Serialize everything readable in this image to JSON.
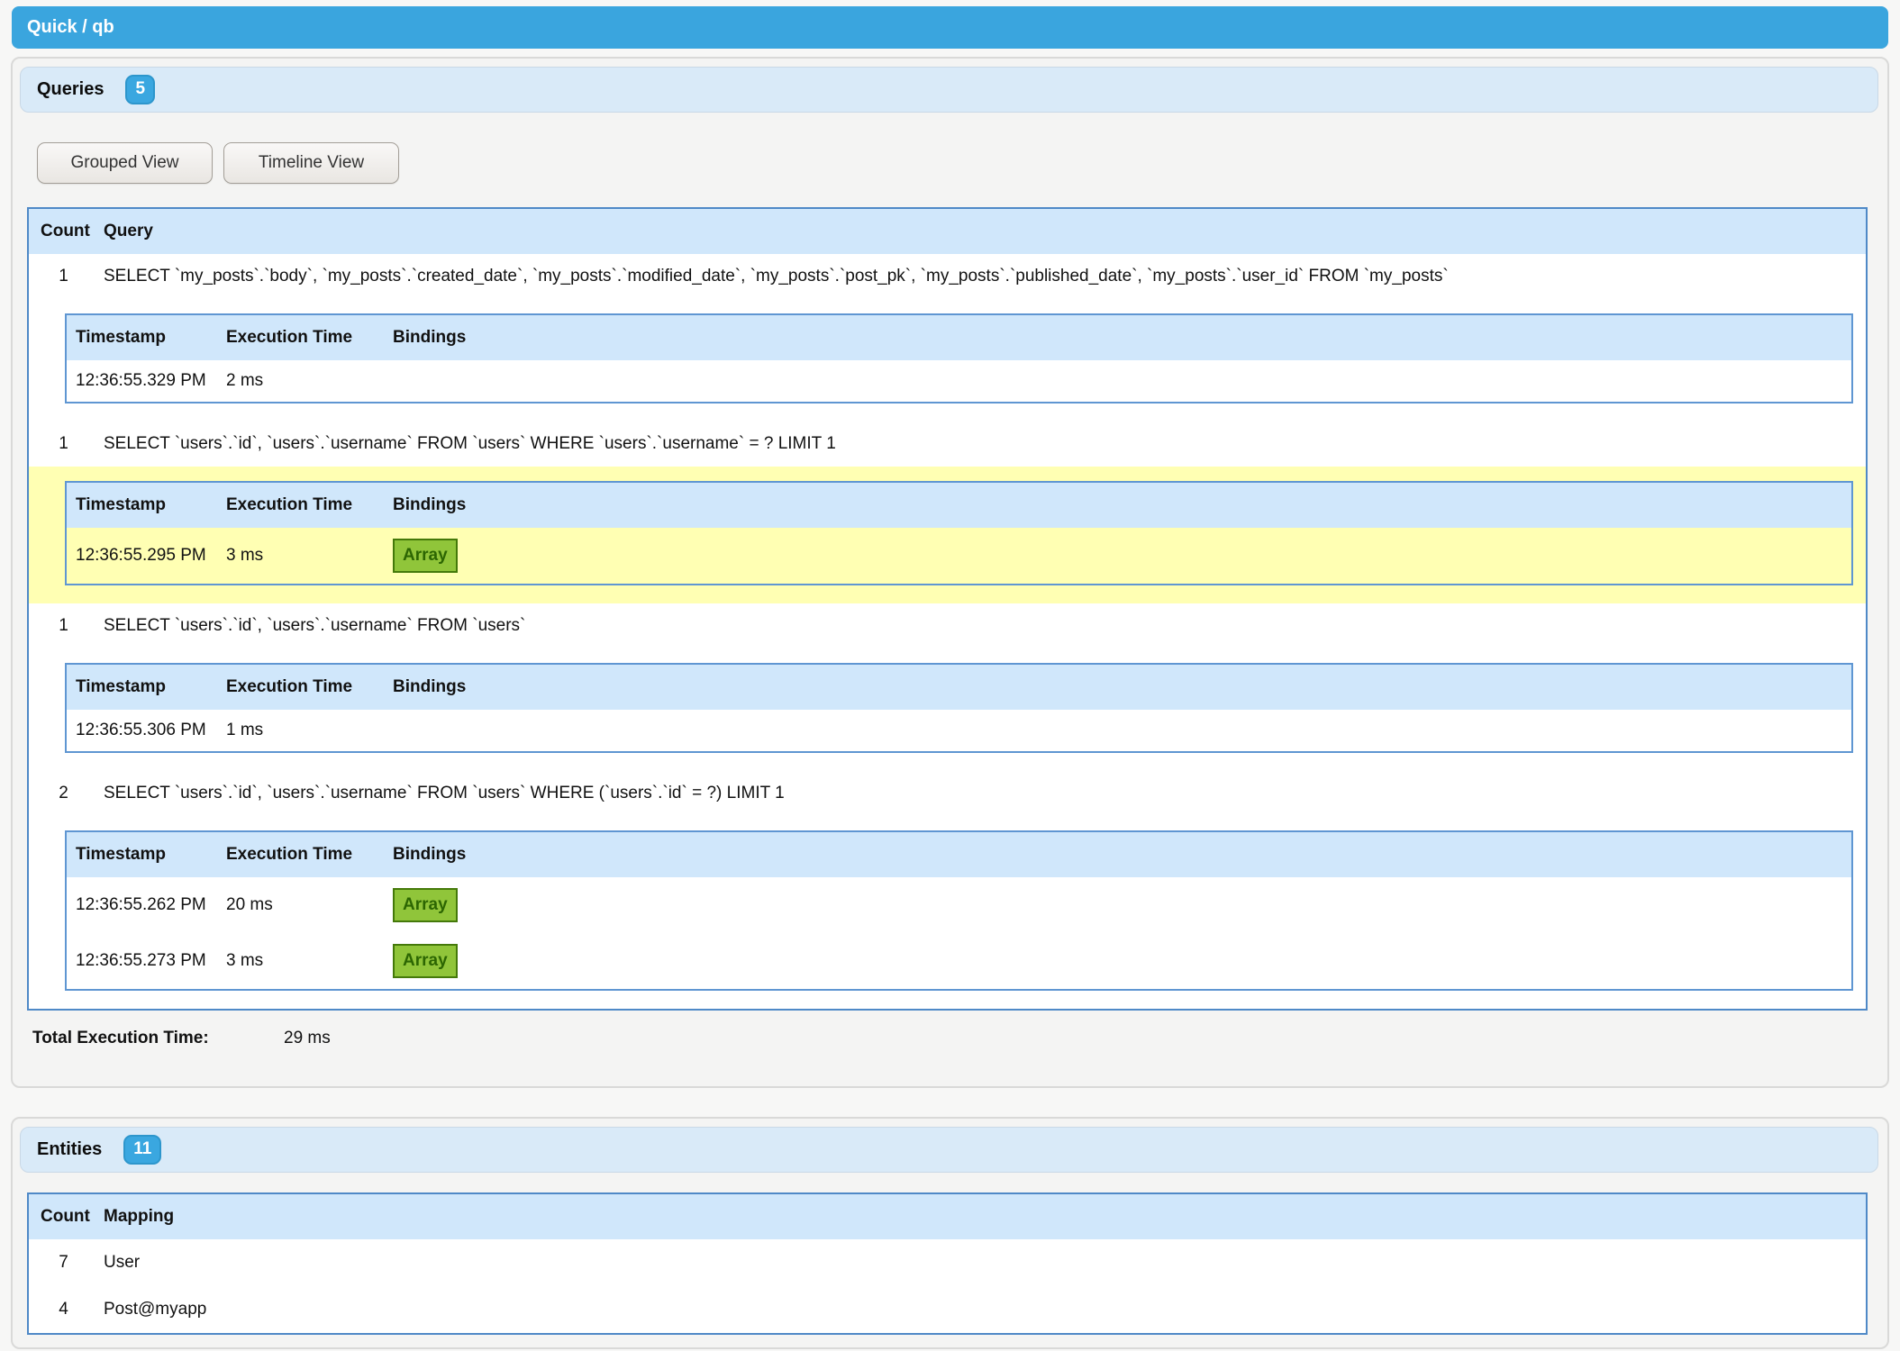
{
  "topbar": {
    "title": "Quick / qb"
  },
  "queries_panel": {
    "title": "Queries",
    "badge": "5",
    "buttons": {
      "grouped": "Grouped View",
      "timeline": "Timeline View"
    },
    "table": {
      "headers": {
        "count": "Count",
        "query": "Query"
      },
      "exec_headers": {
        "timestamp": "Timestamp",
        "execution_time": "Execution Time",
        "bindings": "Bindings"
      },
      "rows": [
        {
          "count": "1",
          "query": "SELECT `my_posts`.`body`, `my_posts`.`created_date`, `my_posts`.`modified_date`, `my_posts`.`post_pk`, `my_posts`.`published_date`, `my_posts`.`user_id` FROM `my_posts`",
          "highlight": false,
          "executions": [
            {
              "timestamp": "12:36:55.329 PM",
              "time": "2 ms",
              "bindings": null
            }
          ]
        },
        {
          "count": "1",
          "query": "SELECT `users`.`id`, `users`.`username` FROM `users` WHERE `users`.`username` = ? LIMIT 1",
          "highlight": true,
          "executions": [
            {
              "timestamp": "12:36:55.295 PM",
              "time": "3 ms",
              "bindings": "Array"
            }
          ]
        },
        {
          "count": "1",
          "query": "SELECT `users`.`id`, `users`.`username` FROM `users`",
          "highlight": false,
          "executions": [
            {
              "timestamp": "12:36:55.306 PM",
              "time": "1 ms",
              "bindings": null
            }
          ]
        },
        {
          "count": "2",
          "query": "SELECT `users`.`id`, `users`.`username` FROM `users` WHERE (`users`.`id` = ?) LIMIT 1",
          "highlight": false,
          "executions": [
            {
              "timestamp": "12:36:55.262 PM",
              "time": "20 ms",
              "bindings": "Array"
            },
            {
              "timestamp": "12:36:55.273 PM",
              "time": "3 ms",
              "bindings": "Array"
            }
          ]
        }
      ]
    },
    "total_label": "Total Execution Time:",
    "total_value": "29 ms"
  },
  "entities_panel": {
    "title": "Entities",
    "badge": "11",
    "table": {
      "headers": {
        "count": "Count",
        "mapping": "Mapping"
      },
      "rows": [
        {
          "count": "7",
          "mapping": "User"
        },
        {
          "count": "4",
          "mapping": "Post@myapp"
        }
      ]
    }
  },
  "colors": {
    "topbar_blue": "#3aa5de",
    "badge_blue": "#3aa7e0",
    "panel_header_blue": "#d9eaf8",
    "table_header_blue": "#d0e7fb",
    "table_border_blue": "#4f89c7",
    "highlight_yellow": "#ffffb3",
    "array_green_bg": "#90c53a",
    "array_green_border": "#44790a",
    "array_green_text": "#2c6602"
  }
}
